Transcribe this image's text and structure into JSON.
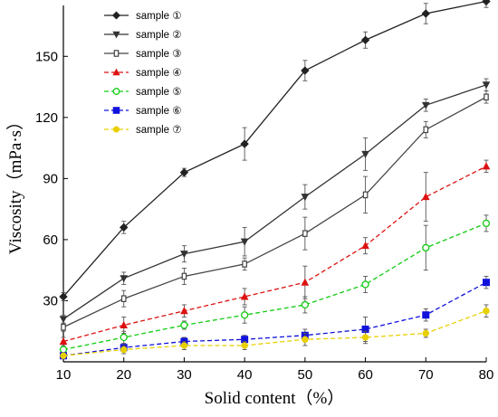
{
  "chart_data": {
    "type": "line",
    "xlabel": "Solid content（%）",
    "ylabel": "Viscosity（mPa·s）",
    "x": [
      10,
      20,
      30,
      40,
      50,
      60,
      70,
      80
    ],
    "xlim": [
      10,
      80
    ],
    "ylim": [
      0,
      175
    ],
    "xticks": [
      "10",
      "20",
      "30",
      "40",
      "50",
      "60",
      "70",
      "80"
    ],
    "yticks": [
      "30",
      "60",
      "90",
      "120",
      "150"
    ],
    "ytick_values": [
      30,
      60,
      90,
      120,
      150
    ],
    "grid": false,
    "legend_position": "top-left",
    "series": [
      {
        "name": "sample ①",
        "color": "#222222",
        "dash": "solid",
        "marker": "diamond",
        "values": [
          32,
          66,
          93,
          107,
          143,
          158,
          171,
          177
        ],
        "errors": [
          2,
          3,
          2,
          8,
          5,
          4,
          5,
          3
        ]
      },
      {
        "name": "sample ②",
        "color": "#333333",
        "dash": "solid",
        "marker": "triangle-down",
        "values": [
          21,
          41,
          53,
          59,
          81,
          102,
          126,
          136
        ],
        "errors": [
          2,
          3,
          4,
          7,
          6,
          8,
          3,
          3
        ]
      },
      {
        "name": "sample ③",
        "color": "#444444",
        "dash": "solid",
        "marker": "square-open",
        "values": [
          17,
          31,
          42,
          48,
          63,
          82,
          114,
          130
        ],
        "errors": [
          2,
          4,
          4,
          3,
          8,
          9,
          4,
          3
        ]
      },
      {
        "name": "sample ④",
        "color": "#dd1111",
        "dash": "dashed",
        "marker": "triangle-up",
        "values": [
          10,
          18,
          25,
          32,
          39,
          57,
          81,
          96
        ],
        "errors": [
          2,
          4,
          3,
          4,
          8,
          4,
          12,
          3
        ]
      },
      {
        "name": "sample ⑤",
        "color": "#11cc11",
        "dash": "dashed",
        "marker": "circle-open",
        "values": [
          6,
          12,
          18,
          23,
          28,
          38,
          56,
          68
        ],
        "errors": [
          1,
          3,
          2,
          4,
          4,
          4,
          11,
          4
        ]
      },
      {
        "name": "sample ⑥",
        "color": "#1111dd",
        "dash": "dashed",
        "marker": "square",
        "values": [
          3,
          7,
          10,
          11,
          13,
          16,
          23,
          39
        ],
        "errors": [
          1,
          2,
          2,
          2,
          3,
          6,
          3,
          3
        ]
      },
      {
        "name": "sample ⑦",
        "color": "#e8d000",
        "dash": "dashed",
        "marker": "circle",
        "values": [
          3,
          6,
          8,
          8,
          11,
          12,
          14,
          25
        ],
        "errors": [
          1,
          2,
          2,
          2,
          3,
          3,
          2,
          3
        ]
      }
    ]
  }
}
